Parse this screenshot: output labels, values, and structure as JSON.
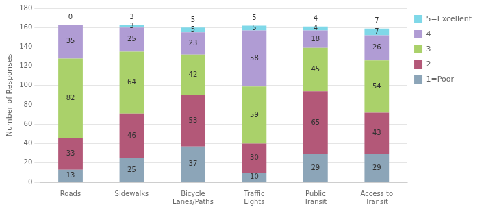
{
  "chart_data": {
    "type": "bar",
    "stacked": true,
    "categories": [
      "Roads",
      "Sidewalks",
      "Bicycle\nLanes/Paths",
      "Traffic\nLights",
      "Public\nTransit",
      "Access to\nTransit"
    ],
    "series": [
      {
        "name": "1=Poor",
        "color": "#8ca5b8",
        "values": [
          13,
          25,
          37,
          10,
          29,
          29
        ]
      },
      {
        "name": "2",
        "color": "#b35878",
        "values": [
          33,
          46,
          53,
          30,
          65,
          43
        ]
      },
      {
        "name": "3",
        "color": "#aad16a",
        "values": [
          82,
          64,
          42,
          59,
          45,
          54
        ]
      },
      {
        "name": "4",
        "color": "#b09cd4",
        "values": [
          35,
          25,
          23,
          58,
          18,
          26
        ]
      },
      {
        "name": "5=Excellent",
        "color": "#7fd8e8",
        "values": [
          0,
          3,
          5,
          5,
          4,
          7
        ]
      }
    ],
    "top_labels": [
      0,
      3,
      5,
      5,
      4,
      7
    ],
    "ylabel": "Number of Responses",
    "ylim": [
      0,
      180
    ],
    "yticks": [
      0,
      20,
      40,
      60,
      80,
      100,
      120,
      140,
      160,
      180
    ],
    "grid": true,
    "legend": "right",
    "data_labels": true
  }
}
